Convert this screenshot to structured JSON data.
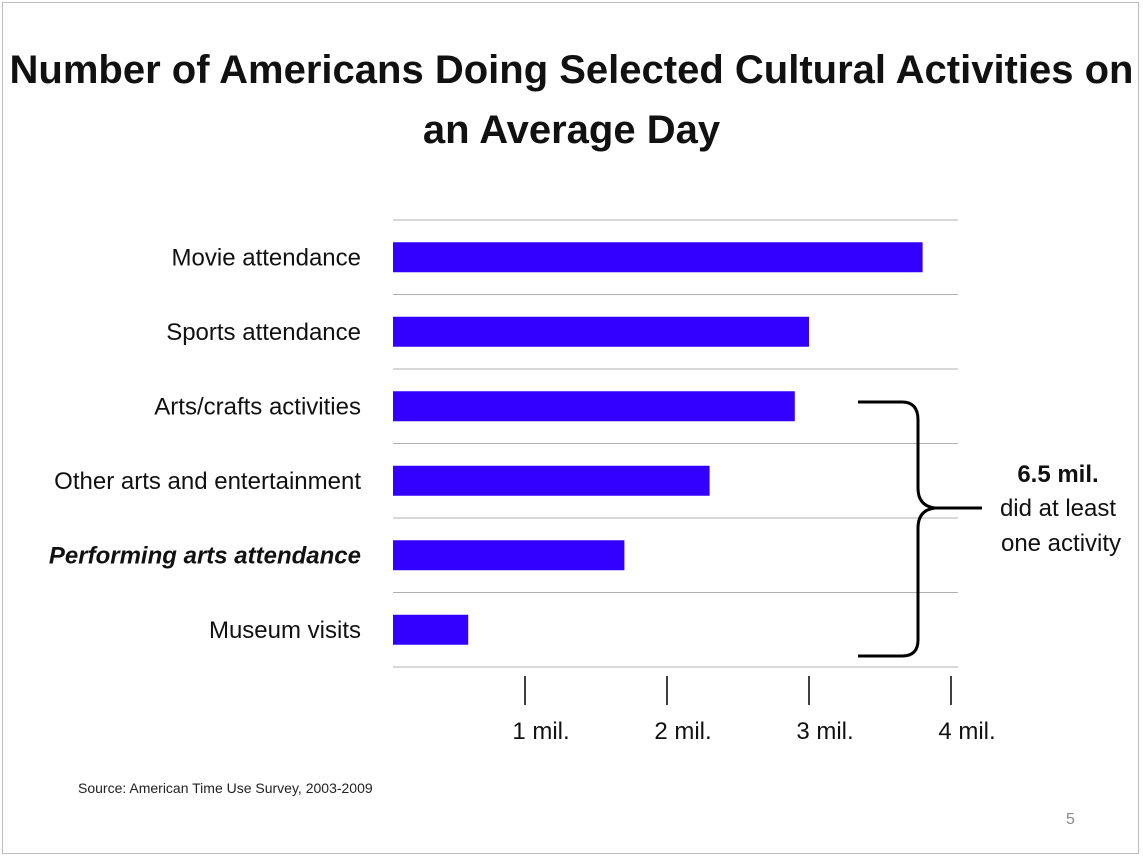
{
  "title": "Number of Americans Doing Selected Cultural Activities on an Average Day",
  "chart_data": {
    "type": "bar",
    "orientation": "horizontal",
    "title": "Number of Americans Doing Selected Cultural Activities on an Average Day",
    "categories": [
      "Movie attendance",
      "Sports attendance",
      "Arts/crafts activities",
      "Other arts and entertainment",
      "Performing arts attendance",
      "Museum visits"
    ],
    "emphasized_category": "Performing arts attendance",
    "values": [
      3.8,
      3.0,
      2.9,
      2.3,
      1.7,
      0.6
    ],
    "units": "millions",
    "xlim": [
      0,
      4
    ],
    "xticks": [
      1,
      2,
      3,
      4
    ],
    "xtick_labels": [
      "1 mil.",
      "2 mil.",
      "3 mil.",
      "4 mil."
    ],
    "bar_color": "#3300ff",
    "grid": true,
    "annotation": {
      "value": "6.5 mil.",
      "line1": "did at least",
      "line2": "one activity"
    }
  },
  "source": "Source: American Time Use Survey, 2003-2009",
  "page_number": "5"
}
